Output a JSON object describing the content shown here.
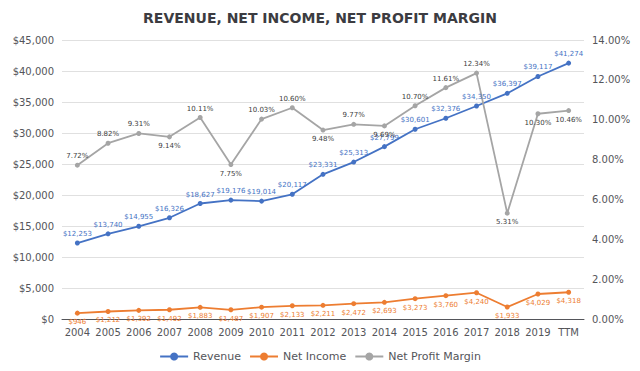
{
  "chart_data": {
    "type": "line",
    "title": "REVENUE, NET INCOME, NET PROFIT MARGIN",
    "categories": [
      "2004",
      "2005",
      "2006",
      "2007",
      "2008",
      "2009",
      "2010",
      "2011",
      "2012",
      "2013",
      "2014",
      "2015",
      "2016",
      "2017",
      "2018",
      "2019",
      "TTM"
    ],
    "series": [
      {
        "name": "Revenue",
        "color": "#4472C4",
        "values": [
          12253,
          13740,
          14955,
          16326,
          18627,
          19176,
          19014,
          20117,
          23331,
          25313,
          27799,
          30601,
          32376,
          34350,
          36397,
          39117,
          41274
        ],
        "value_labels": [
          "$12,253",
          "$13,740",
          "$14,955",
          "$16,326",
          "$18,627",
          "$19,176",
          "$19,014",
          "$20,117",
          "$23,331",
          "$25,313",
          "$27,799",
          "$30,601",
          "$32,376",
          "$34,350",
          "$36,397",
          "$39,117",
          "$41,274"
        ]
      },
      {
        "name": "Net Income",
        "color": "#ED7D31",
        "values": [
          946,
          1212,
          1392,
          1492,
          1883,
          1487,
          1907,
          2133,
          2211,
          2472,
          2693,
          3273,
          3760,
          4240,
          1933,
          4029,
          4318
        ],
        "value_labels": [
          "$946",
          "$1,212",
          "$1,392",
          "$1,492",
          "$1,883",
          "$1,487",
          "$1,907",
          "$2,133",
          "$2,211",
          "$2,472",
          "$2,693",
          "$3,273",
          "$3,760",
          "$4,240",
          "$1,933",
          "$4,029",
          "$4,318"
        ]
      },
      {
        "name": "Net Profit Margin",
        "color": "#A5A5A5",
        "axis": "y2",
        "values": [
          7.72,
          8.82,
          9.31,
          9.14,
          10.11,
          7.75,
          10.03,
          10.6,
          9.48,
          9.77,
          9.69,
          10.7,
          11.61,
          12.34,
          5.31,
          10.3,
          10.46
        ],
        "value_labels": [
          "7.72%",
          "8.82%",
          "9.31%",
          "9.14%",
          "10.11%",
          "7.75%",
          "10.03%",
          "10.60%",
          "9.48%",
          "9.77%",
          "9.69%",
          "10.70%",
          "11.61%",
          "12.34%",
          "5.31%",
          "10.30%",
          "10.46%"
        ]
      }
    ],
    "ylim": [
      0,
      45000
    ],
    "yticks": [
      {
        "value": 0,
        "label": "$0"
      },
      {
        "value": 5000,
        "label": "$5,000"
      },
      {
        "value": 10000,
        "label": "$10,000"
      },
      {
        "value": 15000,
        "label": "$15,000"
      },
      {
        "value": 20000,
        "label": "$20,000"
      },
      {
        "value": 25000,
        "label": "$25,000"
      },
      {
        "value": 30000,
        "label": "$30,000"
      },
      {
        "value": 35000,
        "label": "$35,000"
      },
      {
        "value": 40000,
        "label": "$40,000"
      },
      {
        "value": 45000,
        "label": "$45,000"
      }
    ],
    "y2lim": [
      0,
      14.0
    ],
    "y2ticks": [
      {
        "value": 0.0,
        "label": "0.00%"
      },
      {
        "value": 2.0,
        "label": "2.00%"
      },
      {
        "value": 4.0,
        "label": "4.00%"
      },
      {
        "value": 6.0,
        "label": "6.00%"
      },
      {
        "value": 8.0,
        "label": "8.00%"
      },
      {
        "value": 10.0,
        "label": "10.00%"
      },
      {
        "value": 12.0,
        "label": "12.00%"
      },
      {
        "value": 14.0,
        "label": "14.00%"
      }
    ],
    "grid": true,
    "legend": "bottom",
    "data_labels": true,
    "marker": "circle"
  }
}
